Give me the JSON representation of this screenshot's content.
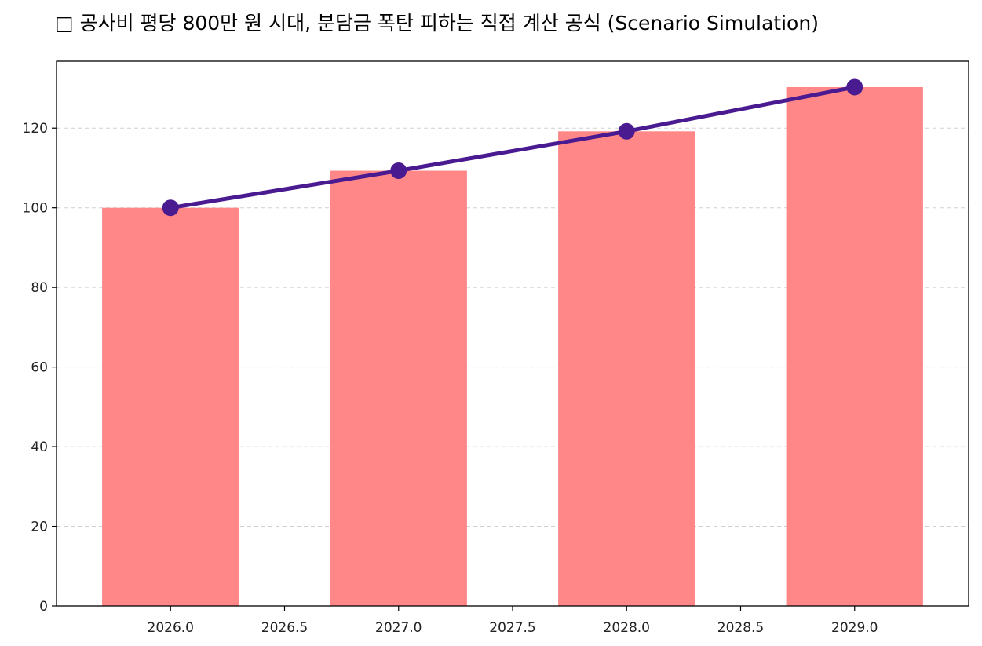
{
  "chart_data": {
    "type": "bar",
    "title": "□ 공사비 평당 800만 원 시대, 분담금 폭탄 피하는 직접 계산 공식 (Scenario Simulation)",
    "xlabel": "",
    "ylabel": "",
    "x": [
      2026,
      2027,
      2028,
      2029
    ],
    "series": [
      {
        "type": "bar",
        "values": [
          100,
          109.3,
          119.2,
          130.3
        ]
      },
      {
        "type": "line",
        "values": [
          100,
          109.3,
          119.2,
          130.3
        ]
      }
    ],
    "xlim": [
      2025.5,
      2029.5
    ],
    "ylim": [
      0,
      136.8
    ],
    "x_ticks": [
      "2026.0",
      "2026.5",
      "2027.0",
      "2027.5",
      "2028.0",
      "2028.5",
      "2029.0"
    ],
    "y_ticks": [
      "0",
      "20",
      "40",
      "60",
      "80",
      "100",
      "120"
    ],
    "grid": "y",
    "colors": {
      "bar": "#ff8787",
      "line": "#4a1a91"
    }
  }
}
